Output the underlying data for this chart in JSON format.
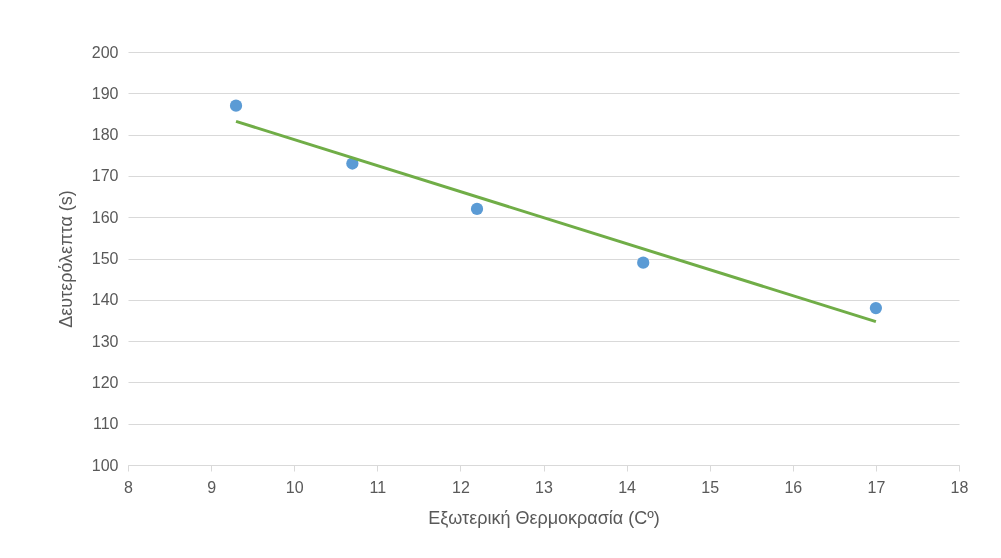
{
  "chart_data": {
    "type": "scatter",
    "xlabel": "Εξωτερική Θερμοκρασία (Cº)",
    "ylabel": "Δευτερόλεπτα (s)",
    "xlim": [
      8,
      18
    ],
    "xticks": [
      8,
      9,
      10,
      11,
      12,
      13,
      14,
      15,
      16,
      17,
      18
    ],
    "ylim": [
      100,
      200
    ],
    "yticks": [
      100,
      110,
      120,
      130,
      140,
      150,
      160,
      170,
      180,
      190,
      200
    ],
    "grid": "y",
    "marker": "circle",
    "series": [
      {
        "color": "#5b9bd5",
        "x": [
          9.3,
          10.7,
          12.2,
          14.2,
          17
        ],
        "values": [
          187,
          173,
          162,
          149,
          138
        ]
      },
      {
        "type": "line",
        "color": "#70ad47",
        "line_style": "solid",
        "marker": "none",
        "x": [
          9.3,
          17
        ],
        "values": [
          183.2,
          134.7
        ]
      }
    ]
  }
}
